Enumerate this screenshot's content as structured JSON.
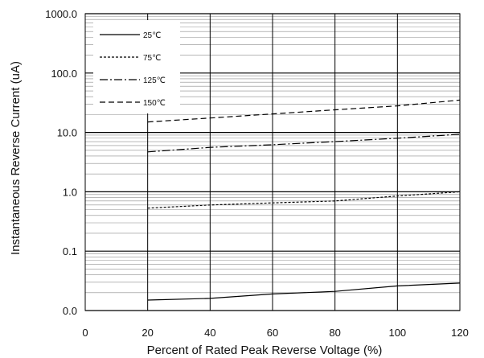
{
  "chart_data": {
    "type": "line",
    "title": "",
    "xlabel": "Percent of  Rated Peak Reverse Voltage (%)",
    "ylabel": "Instantaneous Reverse Current (uA)",
    "xlim": [
      0,
      120
    ],
    "ylim": [
      0.01,
      1000
    ],
    "y_scale": "log",
    "grid": true,
    "legend_position": "top-left",
    "x_ticks": [
      {
        "value": 0,
        "label": "0"
      },
      {
        "value": 20,
        "label": "20"
      },
      {
        "value": 40,
        "label": "40"
      },
      {
        "value": 60,
        "label": "60"
      },
      {
        "value": 80,
        "label": "80"
      },
      {
        "value": 100,
        "label": "100"
      },
      {
        "value": 120,
        "label": "120"
      }
    ],
    "y_ticks": [
      {
        "value": 0.01,
        "label": "0.0"
      },
      {
        "value": 0.1,
        "label": "0.1"
      },
      {
        "value": 1,
        "label": "1.0"
      },
      {
        "value": 10,
        "label": "10.0"
      },
      {
        "value": 100,
        "label": "100.0"
      },
      {
        "value": 1000,
        "label": "1000.0"
      }
    ],
    "series": [
      {
        "name": "25℃",
        "dash": "solid",
        "x": [
          20,
          40,
          60,
          80,
          100,
          120
        ],
        "values": [
          0.015,
          0.016,
          0.019,
          0.021,
          0.026,
          0.029
        ]
      },
      {
        "name": "75℃",
        "dash": "dashed-fine",
        "x": [
          20,
          40,
          60,
          80,
          100,
          120
        ],
        "values": [
          0.53,
          0.6,
          0.65,
          0.7,
          0.85,
          1.0
        ]
      },
      {
        "name": "125℃",
        "dash": "dash-dot",
        "x": [
          20,
          40,
          60,
          80,
          100,
          120
        ],
        "values": [
          4.7,
          5.6,
          6.2,
          7.0,
          8.0,
          9.3
        ]
      },
      {
        "name": "150℃",
        "dash": "dashed-long",
        "x": [
          20,
          40,
          60,
          80,
          100,
          120
        ],
        "values": [
          15,
          17.5,
          20.5,
          24,
          28,
          35
        ]
      }
    ]
  }
}
